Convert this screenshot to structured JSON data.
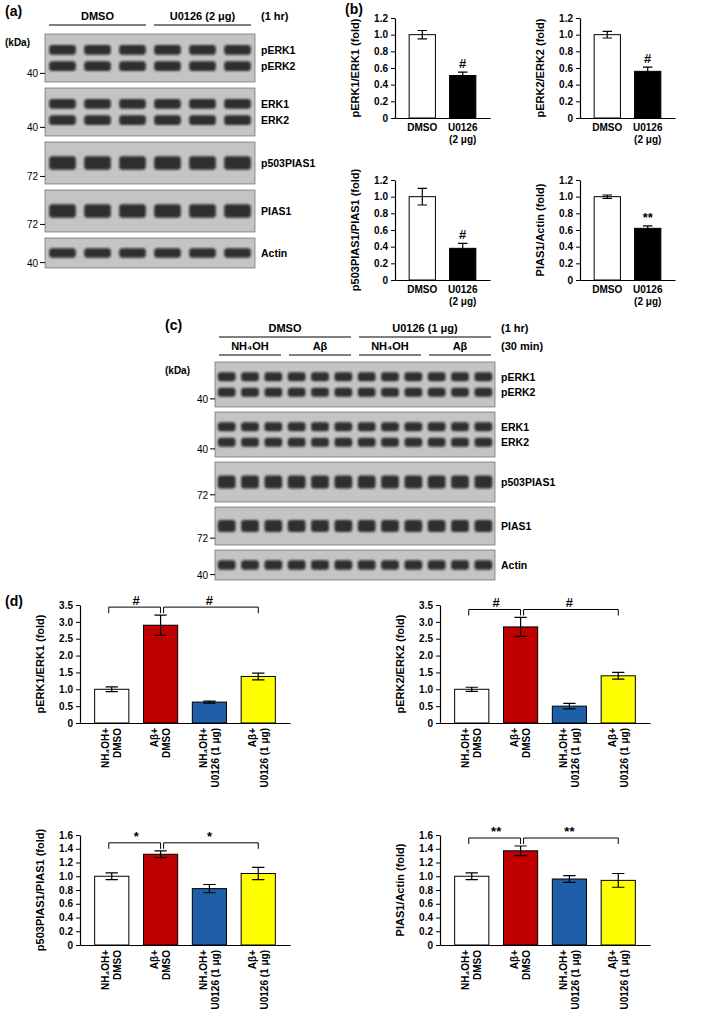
{
  "chart_data": [
    {
      "type": "bar",
      "ylabel": "pERK1/ERK1 (fold)",
      "categories": [
        "DMSO",
        "U0126 (2 μg)"
      ],
      "values": [
        1.0,
        0.51
      ],
      "errors": [
        0.05,
        0.04
      ],
      "colors": [
        "#ffffff",
        "#000000"
      ],
      "ylim": [
        0,
        1.2
      ],
      "yticks": [
        0,
        0.2,
        0.4,
        0.6,
        0.8,
        {
          "value": 1,
          "label": "1.0"
        },
        1.2
      ],
      "annotations": [
        {
          "text": "#",
          "category": 1
        }
      ]
    },
    {
      "type": "bar",
      "ylabel": "pERK2/ERK2 (fold)",
      "categories": [
        "DMSO",
        "U0126 (2 μg)"
      ],
      "values": [
        1.0,
        0.56
      ],
      "errors": [
        0.04,
        0.05
      ],
      "colors": [
        "#ffffff",
        "#000000"
      ],
      "ylim": [
        0,
        1.2
      ],
      "yticks": [
        0,
        0.2,
        0.4,
        0.6,
        0.8,
        {
          "value": 1,
          "label": "1.0"
        },
        1.2
      ],
      "annotations": [
        {
          "text": "#",
          "category": 1
        }
      ]
    },
    {
      "type": "bar",
      "ylabel": "p503PIAS1/PIAS1 (fold)",
      "categories": [
        "DMSO",
        "U0126 (2 μg)"
      ],
      "values": [
        1.0,
        0.38
      ],
      "errors": [
        0.1,
        0.06
      ],
      "colors": [
        "#ffffff",
        "#000000"
      ],
      "ylim": [
        0,
        1.2
      ],
      "yticks": [
        0,
        0.2,
        0.4,
        0.6,
        0.8,
        {
          "value": 1,
          "label": "1.0"
        },
        1.2
      ],
      "annotations": [
        {
          "text": "#",
          "category": 1
        }
      ]
    },
    {
      "type": "bar",
      "ylabel": "PIAS1/Actin (fold)",
      "categories": [
        "DMSO",
        "U0126 (2 μg)"
      ],
      "values": [
        1.0,
        0.62
      ],
      "errors": [
        0.02,
        0.03
      ],
      "colors": [
        "#ffffff",
        "#000000"
      ],
      "ylim": [
        0,
        1.2
      ],
      "yticks": [
        0,
        0.2,
        0.4,
        0.6,
        0.8,
        {
          "value": 1,
          "label": "1.0"
        },
        1.2
      ],
      "annotations": [
        {
          "text": "**",
          "category": 1
        }
      ]
    },
    {
      "type": "bar",
      "ylabel": "pERK1/ERK1 (fold)",
      "categories": [
        "NH₄OH+DMSO",
        "Aβ+DMSO",
        "NH₄OH+U0126 (1 μg)",
        "Aβ+U0126 (1 μg)"
      ],
      "values": [
        1.0,
        2.9,
        0.62,
        1.38
      ],
      "errors": [
        0.07,
        0.3,
        0.03,
        0.1
      ],
      "colors": [
        "#ffffff",
        "#c00000",
        "#1f5fa8",
        "#ffff00"
      ],
      "ylim": [
        0,
        3.5
      ],
      "yticks": [
        0,
        0.5,
        {
          "value": 1,
          "label": "1.0"
        },
        1.5,
        {
          "value": 2,
          "label": "2.0"
        },
        2.5,
        {
          "value": 3,
          "label": "3.0"
        },
        3.5
      ],
      "annotations": [
        {
          "text": "#",
          "between": [
            0,
            1
          ]
        },
        {
          "text": "#",
          "between": [
            1,
            3
          ]
        }
      ]
    },
    {
      "type": "bar",
      "ylabel": "pERK2/ERK2 (fold)",
      "categories": [
        "NH₄OH+DMSO",
        "Aβ+DMSO",
        "NH₄OH+U0126 (1 μg)",
        "Aβ+U0126 (1 μg)"
      ],
      "values": [
        1.0,
        2.85,
        0.5,
        1.4
      ],
      "errors": [
        0.06,
        0.28,
        0.08,
        0.1
      ],
      "colors": [
        "#ffffff",
        "#c00000",
        "#1f5fa8",
        "#ffff00"
      ],
      "ylim": [
        0,
        3.5
      ],
      "yticks": [
        0,
        0.5,
        {
          "value": 1,
          "label": "1.0"
        },
        1.5,
        {
          "value": 2,
          "label": "2.0"
        },
        2.5,
        {
          "value": 3,
          "label": "3.0"
        },
        3.5
      ],
      "annotations": [
        {
          "text": "#",
          "between": [
            0,
            1
          ]
        },
        {
          "text": "#",
          "between": [
            1,
            3
          ]
        }
      ]
    },
    {
      "type": "bar",
      "ylabel": "p503PIAS1/PIAS1 (fold)",
      "categories": [
        "NH₄OH+DMSO",
        "Aβ+DMSO",
        "NH₄OH+U0126 (1 μg)",
        "Aβ+U0126 (1 μg)"
      ],
      "values": [
        1.0,
        1.32,
        0.82,
        1.04
      ],
      "errors": [
        0.05,
        0.05,
        0.06,
        0.09
      ],
      "colors": [
        "#ffffff",
        "#c00000",
        "#1f5fa8",
        "#ffff00"
      ],
      "ylim": [
        0,
        1.6
      ],
      "yticks": [
        0,
        0.2,
        0.4,
        0.6,
        0.8,
        {
          "value": 1,
          "label": "1.0"
        },
        1.2,
        1.4,
        1.6
      ],
      "annotations": [
        {
          "text": "*",
          "between": [
            0,
            1
          ]
        },
        {
          "text": "*",
          "between": [
            1,
            3
          ]
        }
      ]
    },
    {
      "type": "bar",
      "ylabel": "PIAS1/Actin (fold)",
      "categories": [
        "NH₄OH+DMSO",
        "Aβ+DMSO",
        "NH₄OH+U0126 (1 μg)",
        "Aβ+U0126 (1 μg)"
      ],
      "values": [
        1.0,
        1.37,
        0.96,
        0.94
      ],
      "errors": [
        0.05,
        0.07,
        0.05,
        0.1
      ],
      "colors": [
        "#ffffff",
        "#c00000",
        "#1f5fa8",
        "#ffff00"
      ],
      "ylim": [
        0,
        1.6
      ],
      "yticks": [
        0,
        0.2,
        0.4,
        0.6,
        0.8,
        {
          "value": 1,
          "label": "1.0"
        },
        1.2,
        1.4,
        1.6
      ],
      "annotations": [
        {
          "text": "**",
          "between": [
            0,
            1
          ]
        },
        {
          "text": "**",
          "between": [
            1,
            3
          ]
        }
      ]
    }
  ],
  "chart_panels": [
    {
      "label": "(b)"
    },
    {
      "label": "(d)"
    }
  ],
  "blots": [
    {
      "panel": "(a)",
      "kda_label": "(kDa)",
      "time": "(1 hr)",
      "treatments": [
        {
          "text": "DMSO",
          "lanes": 3
        },
        {
          "text": "U0126 (2 μg)",
          "lanes": 3
        }
      ],
      "rows": [
        {
          "bands": [
            "pERK1",
            "pERK2"
          ],
          "marker": 40
        },
        {
          "bands": [
            "ERK1",
            "ERK2"
          ],
          "marker": 40
        },
        {
          "bands": [
            "p503PIAS1"
          ],
          "marker": 72
        },
        {
          "bands": [
            "PIAS1"
          ],
          "marker": 72
        },
        {
          "bands": [
            "Actin"
          ],
          "marker": 40
        }
      ]
    },
    {
      "panel": "(c)",
      "kda_label": "(kDa)",
      "time": "(1 hr)",
      "condition_time": "(30 min)",
      "treatments": [
        {
          "text": "DMSO",
          "conditions": [
            {
              "text": "NH₄OH",
              "lanes": 3
            },
            {
              "text": "Aβ",
              "lanes": 3
            }
          ]
        },
        {
          "text": "U0126 (1 μg)",
          "conditions": [
            {
              "text": "NH₄OH",
              "lanes": 3
            },
            {
              "text": "Aβ",
              "lanes": 3
            }
          ]
        }
      ],
      "rows": [
        {
          "bands": [
            "pERK1",
            "pERK2"
          ],
          "marker": 40
        },
        {
          "bands": [
            "ERK1",
            "ERK2"
          ],
          "marker": 40
        },
        {
          "bands": [
            "p503PIAS1"
          ],
          "marker": 72
        },
        {
          "bands": [
            "PIAS1"
          ],
          "marker": 72
        },
        {
          "bands": [
            "Actin"
          ],
          "marker": 40
        }
      ]
    }
  ]
}
